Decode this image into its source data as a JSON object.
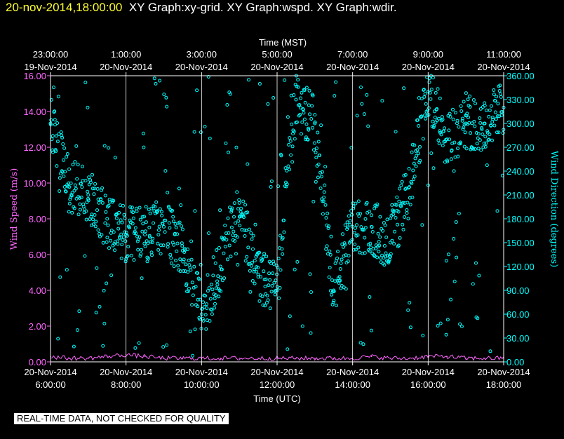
{
  "header": {
    "timestamp": "20-nov-2014,18:00:00",
    "graph_titles": "XY Graph:xy-grid.  XY Graph:wspd.  XY Graph:wdir."
  },
  "footer": {
    "notice": "REAL-TIME DATA, NOT CHECKED FOR QUALITY"
  },
  "colors": {
    "background": "#000000",
    "wind_speed": "#ff66ff",
    "wind_direction": "#00ffff",
    "axis": "#ffffff",
    "header_timestamp": "#ffff33"
  },
  "chart_data": {
    "type": "scatter",
    "xlabel_bottom": "Time (UTC)",
    "xlabel_top": "Time (MST)",
    "ylabel_left": "Wind Speed (m/s)",
    "ylabel_right": "Wind Direction (degrees)",
    "xlim_hours_utc": [
      6,
      18
    ],
    "ylim_left": [
      0,
      16
    ],
    "ylim_right": [
      0,
      360
    ],
    "bottom_ticks": [
      {
        "date": "20-Nov-2014",
        "time": "6:00:00",
        "hour": 6
      },
      {
        "date": "20-Nov-2014",
        "time": "8:00:00",
        "hour": 8
      },
      {
        "date": "20-Nov-2014",
        "time": "10:00:00",
        "hour": 10
      },
      {
        "date": "20-Nov-2014",
        "time": "12:00:00",
        "hour": 12
      },
      {
        "date": "20-Nov-2014",
        "time": "14:00:00",
        "hour": 14
      },
      {
        "date": "20-Nov-2014",
        "time": "16:00:00",
        "hour": 16
      },
      {
        "date": "20-Nov-2014",
        "time": "18:00:00",
        "hour": 18
      }
    ],
    "top_ticks": [
      {
        "time": "23:00:00",
        "date": "19-Nov-2014",
        "hour": 6
      },
      {
        "time": "1:00:00",
        "date": "20-Nov-2014",
        "hour": 8
      },
      {
        "time": "3:00:00",
        "date": "20-Nov-2014",
        "hour": 10
      },
      {
        "time": "5:00:00",
        "date": "20-Nov-2014",
        "hour": 12
      },
      {
        "time": "7:00:00",
        "date": "20-Nov-2014",
        "hour": 14
      },
      {
        "time": "9:00:00",
        "date": "20-Nov-2014",
        "hour": 16
      },
      {
        "time": "11:00:00",
        "date": "20-Nov-2014",
        "hour": 18
      }
    ],
    "left_ticks": [
      "0.00",
      "2.00",
      "4.00",
      "6.00",
      "8.00",
      "10.00",
      "12.00",
      "14.00",
      "16.00"
    ],
    "right_ticks": [
      "0.00",
      "30.00",
      "60.00",
      "90.00",
      "120.00",
      "150.00",
      "180.00",
      "210.00",
      "240.00",
      "270.00",
      "300.00",
      "330.00",
      "360.00"
    ],
    "series": [
      {
        "name": "Wind Speed (m/s)",
        "axis": "left",
        "x_hour_utc": [
          6.0,
          6.5,
          7.0,
          7.5,
          8.0,
          8.5,
          9.0,
          9.5,
          10.0,
          10.5,
          11.0,
          11.5,
          12.0,
          12.5,
          13.0,
          13.5,
          14.0,
          14.5,
          15.0,
          15.5,
          16.0,
          16.5,
          17.0,
          17.5,
          18.0
        ],
        "y": [
          0.3,
          0.2,
          0.2,
          0.3,
          0.4,
          0.3,
          0.2,
          0.2,
          0.2,
          0.2,
          0.2,
          0.2,
          0.2,
          0.2,
          0.2,
          0.2,
          0.2,
          0.3,
          0.2,
          0.2,
          0.3,
          0.3,
          0.2,
          0.2,
          0.2
        ]
      },
      {
        "name": "Wind Direction (degrees)",
        "axis": "right",
        "x_hour_utc": [
          6.0,
          6.5,
          7.0,
          7.5,
          8.0,
          8.5,
          9.0,
          9.5,
          10.0,
          10.5,
          11.0,
          11.5,
          12.0,
          12.5,
          13.0,
          13.5,
          14.0,
          14.5,
          15.0,
          15.5,
          16.0,
          16.5,
          17.0,
          17.5,
          18.0
        ],
        "y": [
          300,
          220,
          210,
          180,
          160,
          160,
          170,
          140,
          60,
          120,
          200,
          110,
          90,
          330,
          300,
          90,
          170,
          170,
          150,
          220,
          340,
          280,
          300,
          300,
          320
        ]
      }
    ]
  }
}
